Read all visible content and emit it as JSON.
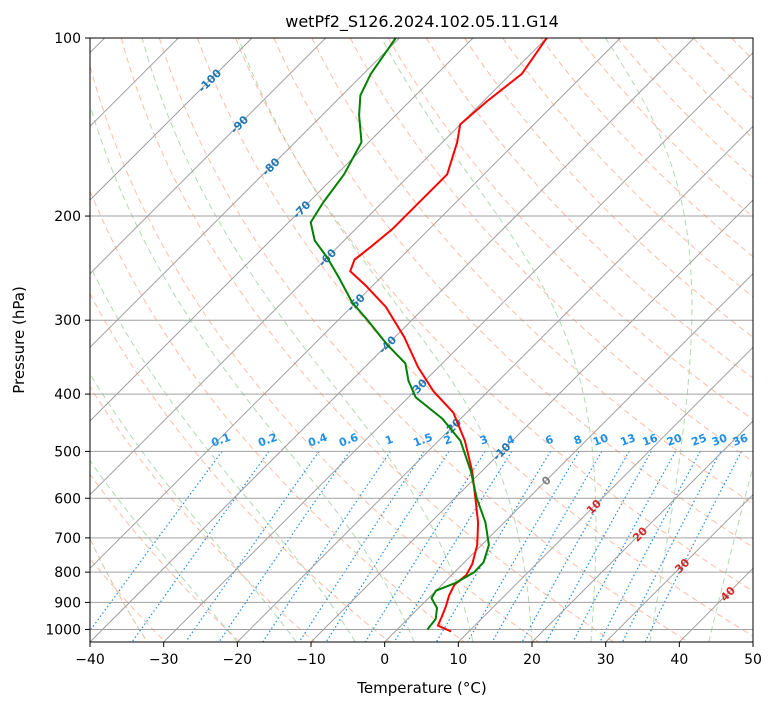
{
  "title": "wetPf2_S126.2024.102.05.11.G14",
  "colors": {
    "temperature": "#ff0000",
    "dewpoint": "#008000",
    "isotherm": "#a0a0a0",
    "dry_adiabat": "#ff9f80",
    "moist_adiabat": "#7fbf7f",
    "mixing_ratio": "#1f8fe8",
    "isotherm_label": "#1f77b4",
    "lcl_label": "#808080",
    "hot_label": "#d62728",
    "tan_curve": "#d2b48c"
  },
  "chart_data": {
    "type": "skew-t",
    "title": "wetPf2_S126.2024.102.05.11.G14",
    "xlabel": "Temperature (°C)",
    "ylabel": "Pressure (hPa)",
    "xlim": [
      -40,
      50
    ],
    "ylim": [
      1050,
      100
    ],
    "y_scale": "log",
    "grid": true,
    "x_ticks": [
      "−40",
      "−30",
      "−20",
      "−10",
      "0",
      "10",
      "20",
      "30",
      "40",
      "50"
    ],
    "y_ticks": [
      "100",
      "200",
      "300",
      "400",
      "500",
      "600",
      "700",
      "800",
      "900",
      "1000"
    ],
    "series": [
      {
        "name": "Temperature",
        "color": "#ff0000",
        "points": [
          {
            "p": 1008,
            "t": 7.6
          },
          {
            "p": 985,
            "t": 5.0
          },
          {
            "p": 955,
            "t": 4.4
          },
          {
            "p": 915,
            "t": 3.5
          },
          {
            "p": 875,
            "t": 2.4
          },
          {
            "p": 840,
            "t": 1.7
          },
          {
            "p": 810,
            "t": 2.0
          },
          {
            "p": 775,
            "t": 1.3
          },
          {
            "p": 720,
            "t": -0.6
          },
          {
            "p": 660,
            "t": -3.5
          },
          {
            "p": 600,
            "t": -7.2
          },
          {
            "p": 540,
            "t": -11.3
          },
          {
            "p": 480,
            "t": -16.4
          },
          {
            "p": 430,
            "t": -21.8
          },
          {
            "p": 395,
            "t": -27.5
          },
          {
            "p": 360,
            "t": -32.8
          },
          {
            "p": 320,
            "t": -38.8
          },
          {
            "p": 285,
            "t": -45.3
          },
          {
            "p": 262,
            "t": -51.0
          },
          {
            "p": 248,
            "t": -55.0
          },
          {
            "p": 237,
            "t": -56.0
          },
          {
            "p": 225,
            "t": -55.5
          },
          {
            "p": 210,
            "t": -55.0
          },
          {
            "p": 192,
            "t": -55.0
          },
          {
            "p": 170,
            "t": -55.0
          },
          {
            "p": 150,
            "t": -58.0
          },
          {
            "p": 140,
            "t": -60.0
          },
          {
            "p": 128,
            "t": -59.5
          },
          {
            "p": 115,
            "t": -58.5
          },
          {
            "p": 100,
            "t": -60.0
          }
        ]
      },
      {
        "name": "Dewpoint",
        "color": "#008000",
        "points": [
          {
            "p": 1000,
            "t": 4.1
          },
          {
            "p": 960,
            "t": 3.8
          },
          {
            "p": 920,
            "t": 2.5
          },
          {
            "p": 885,
            "t": 0.4
          },
          {
            "p": 860,
            "t": 0.0
          },
          {
            "p": 835,
            "t": 1.6
          },
          {
            "p": 800,
            "t": 2.7
          },
          {
            "p": 770,
            "t": 2.6
          },
          {
            "p": 720,
            "t": 1.0
          },
          {
            "p": 660,
            "t": -2.5
          },
          {
            "p": 600,
            "t": -7.0
          },
          {
            "p": 540,
            "t": -11.5
          },
          {
            "p": 480,
            "t": -17.0
          },
          {
            "p": 440,
            "t": -22.5
          },
          {
            "p": 405,
            "t": -29.0
          },
          {
            "p": 380,
            "t": -32.2
          },
          {
            "p": 355,
            "t": -35.0
          },
          {
            "p": 330,
            "t": -40.0
          },
          {
            "p": 300,
            "t": -46.0
          },
          {
            "p": 280,
            "t": -50.5
          },
          {
            "p": 255,
            "t": -55.5
          },
          {
            "p": 235,
            "t": -60.0
          },
          {
            "p": 220,
            "t": -64.0
          },
          {
            "p": 205,
            "t": -67.0
          },
          {
            "p": 190,
            "t": -68.0
          },
          {
            "p": 170,
            "t": -69.0
          },
          {
            "p": 150,
            "t": -71.0
          },
          {
            "p": 135,
            "t": -75.0
          },
          {
            "p": 125,
            "t": -77.5
          },
          {
            "p": 115,
            "t": -79.0
          },
          {
            "p": 100,
            "t": -80.5
          }
        ]
      }
    ],
    "isotherm_labels": [
      "-100",
      "-90",
      "-80",
      "-70",
      "-60",
      "-50",
      "-40",
      "-30",
      "-20",
      "-10",
      "0",
      "10",
      "20",
      "30",
      "40"
    ],
    "mixing_ratio_labels": [
      "0.1",
      "0.2",
      "0.4",
      "0.6",
      "1",
      "1.5",
      "2",
      "3",
      "4",
      "6",
      "8",
      "10",
      "13",
      "16",
      "20",
      "25",
      "30",
      "36"
    ]
  }
}
